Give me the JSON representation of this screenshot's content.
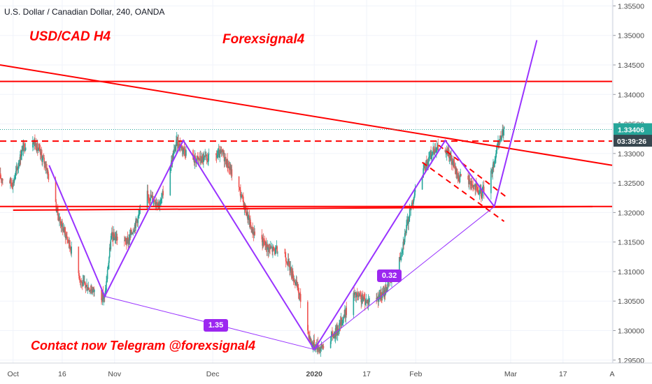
{
  "header": {
    "symbol": "U.S. Dollar / Canadian Dollar, 240, OANDA"
  },
  "annotations": {
    "pair_label": "USD/CAD H4",
    "brand_label": "Forexsignal4",
    "contact_label": "Contact now Telegram @forexsignal4",
    "pattern_tag_1": "1.35",
    "pattern_tag_2": "0.32"
  },
  "colors": {
    "trendline": "#ff0000",
    "pattern": "#9933ff",
    "candle_up": "#26a69a",
    "candle_down": "#ef5350",
    "price_tag": "#26a69a",
    "countdown_tag": "#37474f",
    "tag_fill": "#9c27f0",
    "grid": "#f0f3fa"
  },
  "chart_data": {
    "type": "candlestick",
    "title": "U.S. Dollar / Canadian Dollar, 240, OANDA",
    "x_axis": {
      "type": "date",
      "tick_labels": [
        "Oct",
        "16",
        "Nov",
        "Dec",
        "2020",
        "17",
        "Feb",
        "Mar",
        "17",
        "A"
      ],
      "range": [
        "2019-09-27",
        "2020-04-01"
      ]
    },
    "y_axis": {
      "range": [
        1.2945,
        1.356
      ],
      "tick_labels": [
        "1.35500",
        "1.35000",
        "1.34500",
        "1.34000",
        "1.33500",
        "1.33000",
        "1.32500",
        "1.32000",
        "1.31500",
        "1.31000",
        "1.30500",
        "1.30000",
        "1.29500"
      ],
      "position": "right"
    },
    "price_path": [
      {
        "date": "2019-09-27",
        "price": 1.326
      },
      {
        "date": "2019-10-01",
        "price": 1.325
      },
      {
        "date": "2019-10-04",
        "price": 1.331
      },
      {
        "date": "2019-10-07",
        "price": 1.3325
      },
      {
        "date": "2019-10-11",
        "price": 1.328
      },
      {
        "date": "2019-10-15",
        "price": 1.319
      },
      {
        "date": "2019-10-18",
        "price": 1.315
      },
      {
        "date": "2019-10-22",
        "price": 1.308
      },
      {
        "date": "2019-10-25",
        "price": 1.307
      },
      {
        "date": "2019-10-29",
        "price": 1.3055
      },
      {
        "date": "2019-10-31",
        "price": 1.316
      },
      {
        "date": "2019-11-05",
        "price": 1.315
      },
      {
        "date": "2019-11-11",
        "price": 1.323
      },
      {
        "date": "2019-11-15",
        "price": 1.3215
      },
      {
        "date": "2019-11-20",
        "price": 1.332
      },
      {
        "date": "2019-11-25",
        "price": 1.329
      },
      {
        "date": "2019-11-29",
        "price": 1.329
      },
      {
        "date": "2019-12-04",
        "price": 1.33
      },
      {
        "date": "2019-12-09",
        "price": 1.324
      },
      {
        "date": "2019-12-13",
        "price": 1.317
      },
      {
        "date": "2019-12-18",
        "price": 1.314
      },
      {
        "date": "2019-12-23",
        "price": 1.313
      },
      {
        "date": "2019-12-27",
        "price": 1.307
      },
      {
        "date": "2019-12-31",
        "price": 1.298
      },
      {
        "date": "2020-01-03",
        "price": 1.297
      },
      {
        "date": "2020-01-08",
        "price": 1.3
      },
      {
        "date": "2020-01-13",
        "price": 1.306
      },
      {
        "date": "2020-01-17",
        "price": 1.305
      },
      {
        "date": "2020-01-22",
        "price": 1.306
      },
      {
        "date": "2020-01-27",
        "price": 1.312
      },
      {
        "date": "2020-01-31",
        "price": 1.322
      },
      {
        "date": "2020-02-04",
        "price": 1.328
      },
      {
        "date": "2020-02-07",
        "price": 1.331
      },
      {
        "date": "2020-02-11",
        "price": 1.33
      },
      {
        "date": "2020-02-14",
        "price": 1.326
      },
      {
        "date": "2020-02-18",
        "price": 1.325
      },
      {
        "date": "2020-02-21",
        "price": 1.323
      },
      {
        "date": "2020-02-24",
        "price": 1.3265
      },
      {
        "date": "2020-02-26",
        "price": 1.331
      },
      {
        "date": "2020-02-28",
        "price": 1.3342
      }
    ],
    "horizontal_lines": [
      {
        "price": 1.3422,
        "style": "solid",
        "color": "#ff0000"
      },
      {
        "price": 1.3321,
        "style": "dashed",
        "color": "#ff0000"
      },
      {
        "price": 1.32102,
        "style": "solid",
        "color": "#ff0000"
      }
    ],
    "trendlines": [
      {
        "from": {
          "date": "2019-09-27",
          "price": 1.345
        },
        "to": {
          "date": "2020-04-01",
          "price": 1.328
        },
        "color": "#ff0000"
      },
      {
        "from": {
          "date": "2019-10-01",
          "price": 1.3204
        },
        "to": {
          "date": "2020-03-26",
          "price": 1.321
        },
        "color": "#ff0000"
      }
    ],
    "channel_lines": [
      {
        "from": {
          "date": "2020-02-08",
          "price": 1.3314
        },
        "to": {
          "date": "2020-02-29",
          "price": 1.3225
        },
        "style": "dashed"
      },
      {
        "from": {
          "date": "2020-02-03",
          "price": 1.3285
        },
        "to": {
          "date": "2020-02-28",
          "price": 1.3185
        },
        "style": "dashed"
      }
    ],
    "pattern_legs": [
      {
        "date": "2019-10-12",
        "price": 1.328
      },
      {
        "date": "2019-10-29",
        "price": 1.3058
      },
      {
        "date": "2019-11-22",
        "price": 1.3322
      },
      {
        "date": "2020-01-01",
        "price": 1.2968
      },
      {
        "date": "2020-02-10",
        "price": 1.3322
      },
      {
        "date": "2020-02-25",
        "price": 1.321
      },
      {
        "date": "2020-02-28",
        "price": 1.3275
      },
      {
        "date": "2020-03-09",
        "price": 1.3492
      }
    ],
    "pattern_base_lines": [
      {
        "from": {
          "date": "2019-10-29",
          "price": 1.3058
        },
        "to": {
          "date": "2020-01-01",
          "price": 1.2968
        }
      },
      {
        "from": {
          "date": "2020-01-01",
          "price": 1.2968
        },
        "to": {
          "date": "2020-02-25",
          "price": 1.321
        }
      }
    ],
    "tags": [
      {
        "label": "1.35",
        "date": "2019-12-02",
        "price": 1.3008
      },
      {
        "label": "0.32",
        "date": "2020-01-24",
        "price": 1.3092
      }
    ],
    "current_price": "1.33406",
    "countdown": "03:39:26",
    "countdown_price": 1.3321,
    "grid": true
  }
}
